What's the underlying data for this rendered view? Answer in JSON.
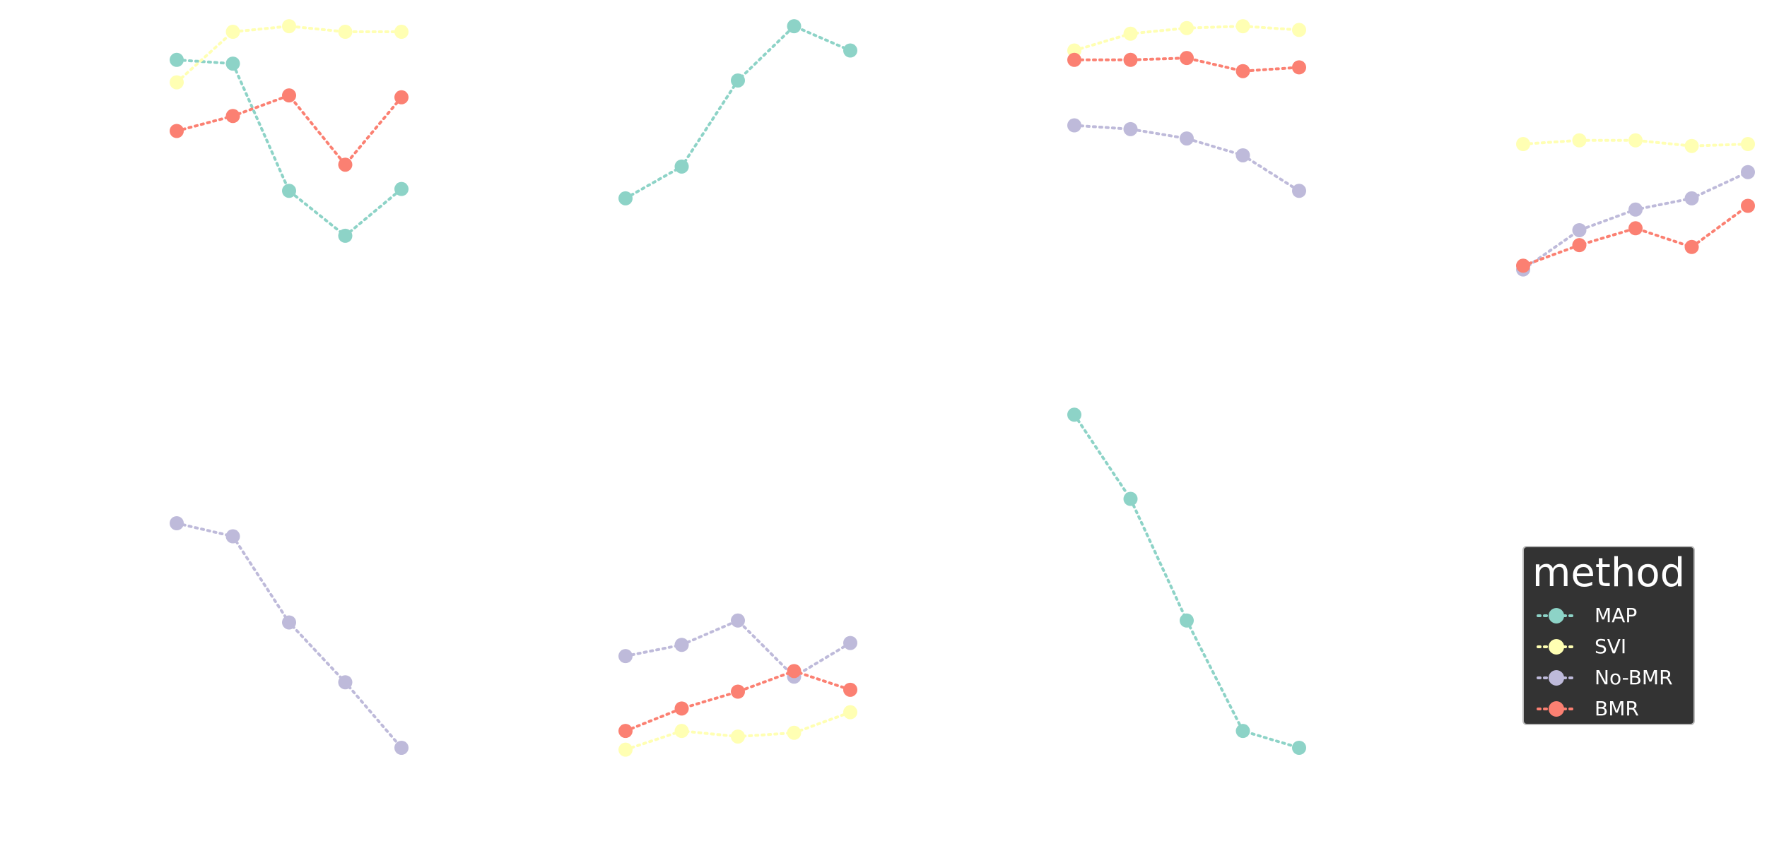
{
  "legend": {
    "title": "method",
    "items": [
      {
        "label": "MAP",
        "color": "#8dd3c7"
      },
      {
        "label": "SVI",
        "color": "#ffffb3"
      },
      {
        "label": "No-BMR",
        "color": "#bebada"
      },
      {
        "label": "BMR",
        "color": "#fb8072"
      }
    ]
  },
  "chart_data": [
    {
      "type": "line",
      "panel": "top-1",
      "x": [
        1,
        2,
        3,
        4,
        5
      ],
      "ylim": [
        0,
        1
      ],
      "series": [
        {
          "name": "MAP",
          "color": "#8dd3c7",
          "values": [
            0.84,
            0.83,
            0.49,
            0.37,
            0.495
          ]
        },
        {
          "name": "SVI",
          "color": "#ffffb3",
          "values": [
            0.78,
            0.915,
            0.93,
            0.915,
            0.915
          ]
        },
        {
          "name": "BMR",
          "color": "#fb8072",
          "values": [
            0.65,
            0.69,
            0.745,
            0.56,
            0.74
          ]
        }
      ]
    },
    {
      "type": "line",
      "panel": "top-2",
      "x": [
        1,
        2,
        3,
        4,
        5
      ],
      "ylim": [
        0,
        1
      ],
      "series": [
        {
          "name": "MAP",
          "color": "#8dd3c7",
          "values": [
            0.47,
            0.555,
            0.785,
            0.93,
            0.865
          ]
        }
      ]
    },
    {
      "type": "line",
      "panel": "top-3",
      "x": [
        1,
        2,
        3,
        4,
        5
      ],
      "ylim": [
        0,
        1
      ],
      "series": [
        {
          "name": "SVI",
          "color": "#ffffb3",
          "values": [
            0.865,
            0.91,
            0.925,
            0.93,
            0.92
          ]
        },
        {
          "name": "BMR",
          "color": "#fb8072",
          "values": [
            0.84,
            0.84,
            0.845,
            0.81,
            0.82
          ]
        },
        {
          "name": "No-BMR",
          "color": "#bebada",
          "values": [
            0.665,
            0.655,
            0.63,
            0.585,
            0.49
          ]
        }
      ]
    },
    {
      "type": "line",
      "panel": "top-4",
      "x": [
        1,
        2,
        3,
        4,
        5
      ],
      "ylim": [
        0,
        1
      ],
      "series": [
        {
          "name": "SVI",
          "color": "#ffffb3",
          "values": [
            0.615,
            0.625,
            0.625,
            0.61,
            0.615
          ]
        },
        {
          "name": "No-BMR",
          "color": "#bebada",
          "values": [
            0.28,
            0.385,
            0.44,
            0.47,
            0.54
          ]
        },
        {
          "name": "BMR",
          "color": "#fb8072",
          "values": [
            0.29,
            0.345,
            0.39,
            0.34,
            0.45
          ]
        }
      ]
    },
    {
      "type": "line",
      "panel": "bottom-1",
      "x": [
        1,
        2,
        3,
        4,
        5
      ],
      "ylim": [
        0,
        1
      ],
      "series": [
        {
          "name": "No-BMR",
          "color": "#bebada",
          "values": [
            0.8,
            0.765,
            0.535,
            0.375,
            0.2
          ]
        }
      ]
    },
    {
      "type": "line",
      "panel": "bottom-2",
      "x": [
        1,
        2,
        3,
        4,
        5
      ],
      "ylim": [
        0,
        1
      ],
      "series": [
        {
          "name": "No-BMR",
          "color": "#bebada",
          "values": [
            0.445,
            0.475,
            0.54,
            0.39,
            0.48
          ]
        },
        {
          "name": "BMR",
          "color": "#fb8072",
          "values": [
            0.245,
            0.305,
            0.35,
            0.405,
            0.355
          ]
        },
        {
          "name": "SVI",
          "color": "#ffffb3",
          "values": [
            0.195,
            0.245,
            0.23,
            0.24,
            0.295
          ]
        }
      ]
    },
    {
      "type": "line",
      "panel": "bottom-3",
      "x": [
        1,
        2,
        3,
        4,
        5
      ],
      "ylim": [
        0,
        1
      ],
      "series": [
        {
          "name": "MAP",
          "color": "#8dd3c7",
          "values": [
            1.09,
            0.865,
            0.54,
            0.245,
            0.2
          ]
        }
      ]
    }
  ]
}
